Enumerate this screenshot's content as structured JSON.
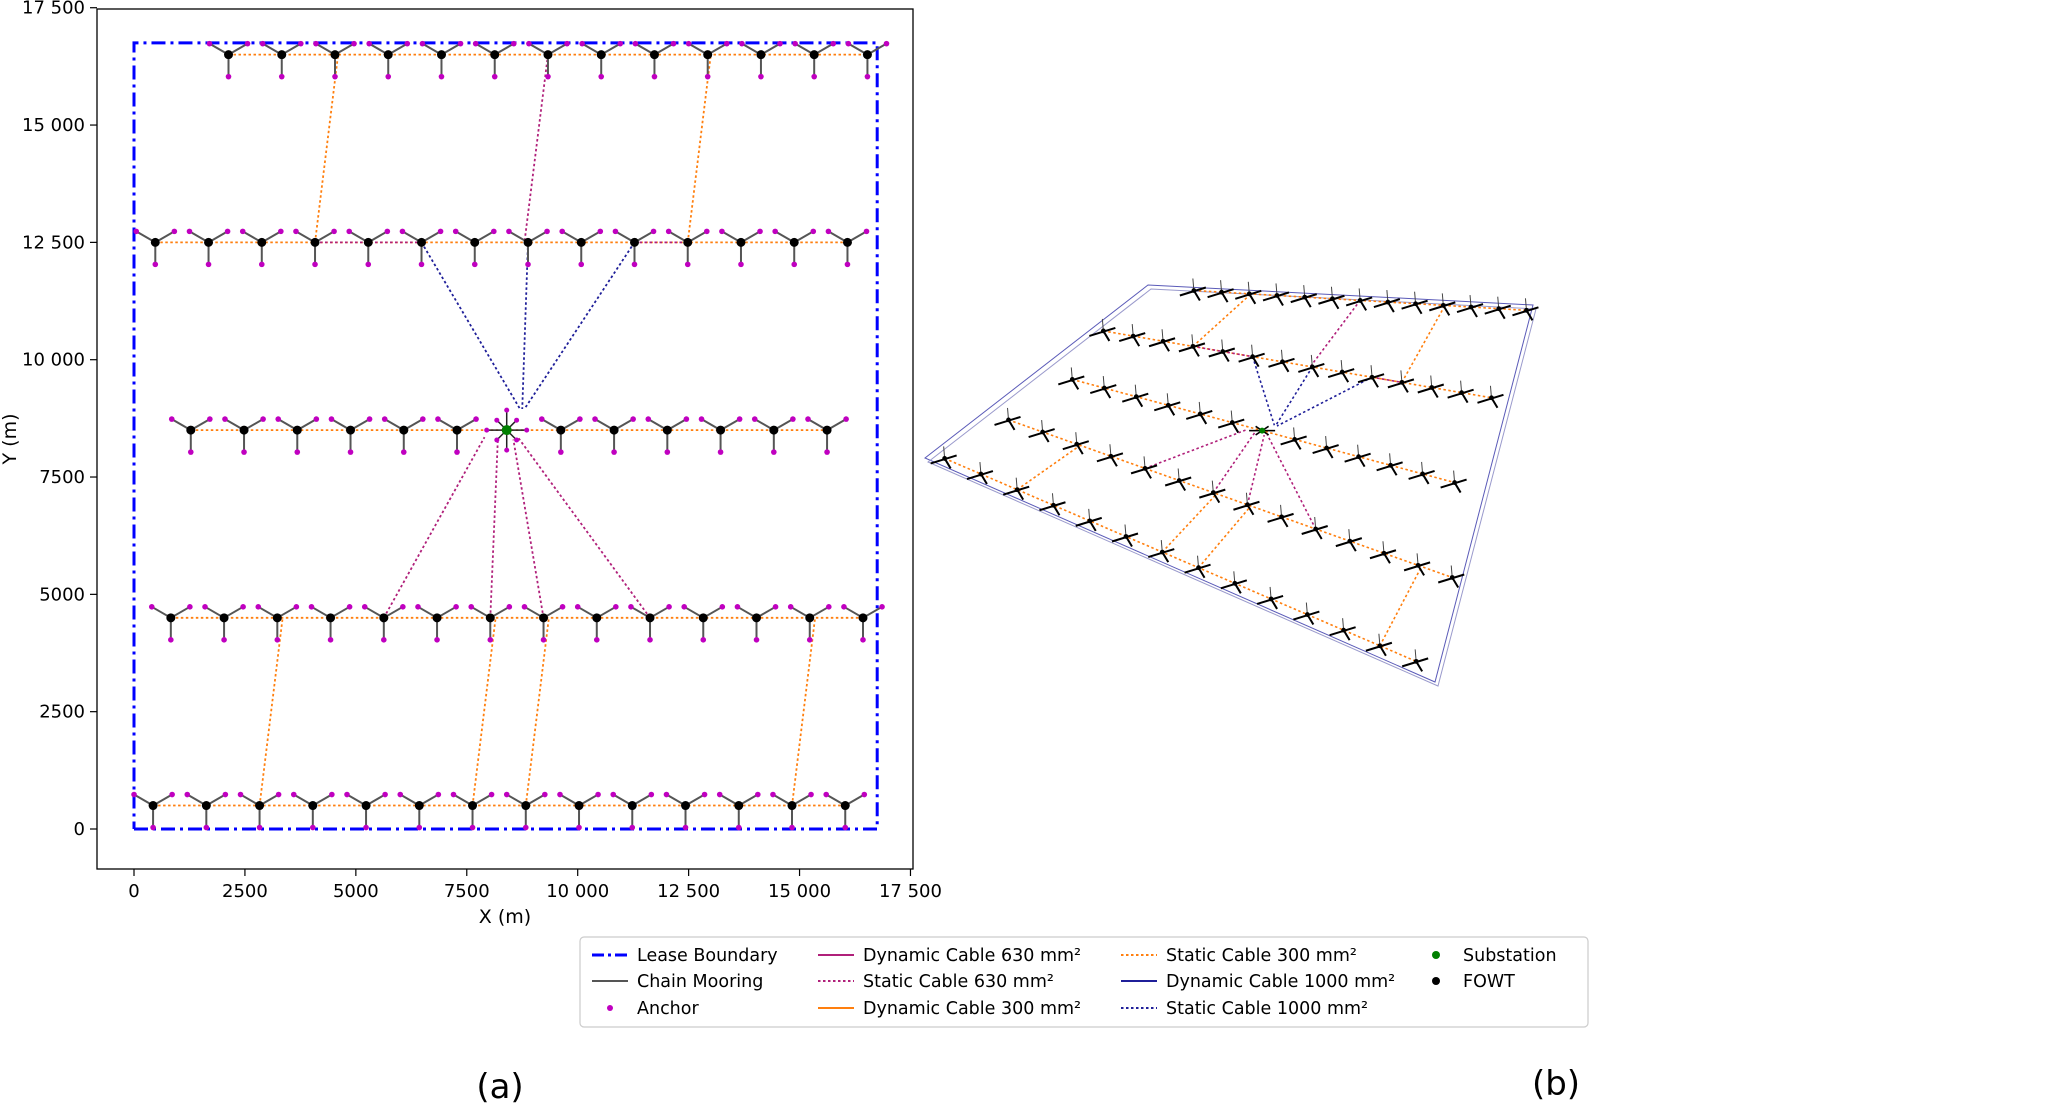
{
  "chart_data": [
    {
      "panel": "(a)",
      "type": "scatter",
      "xlabel": "X (m)",
      "ylabel": "Y (m)",
      "xlim": [
        -800,
        17500
      ],
      "ylim": [
        -800,
        17500
      ],
      "x_ticks": [
        0,
        2500,
        5000,
        7500,
        10000,
        12500,
        15000,
        17500
      ],
      "y_ticks": [
        0,
        2500,
        5000,
        7500,
        10000,
        12500,
        15000,
        17500
      ],
      "x_tick_labels": [
        "0",
        "2500",
        "5000",
        "7500",
        "10 000",
        "12 500",
        "15 000",
        "17 500"
      ],
      "y_tick_labels": [
        "0",
        "2500",
        "5000",
        "7500",
        "10 000",
        "12 500",
        "15 000",
        "17 500"
      ],
      "lease_boundary": [
        [
          0,
          0
        ],
        [
          16750,
          0
        ],
        [
          16750,
          16750
        ],
        [
          0,
          16750
        ],
        [
          0,
          0
        ]
      ],
      "substation": [
        8400,
        8500
      ],
      "rows": [
        {
          "y": 500,
          "x": [
            430,
            1630,
            2830,
            4030,
            5230,
            6430,
            7630,
            8830,
            10030,
            11230,
            12430,
            13630,
            14830,
            16030
          ]
        },
        {
          "y": 4500,
          "x": [
            830,
            2030,
            3230,
            4430,
            5630,
            6830,
            8030,
            9230,
            10430,
            11630,
            12830,
            14030,
            15230,
            16430
          ]
        },
        {
          "y": 8500,
          "x": [
            1280,
            2480,
            3680,
            4880,
            6080,
            7280,
            9620,
            10820,
            12020,
            13220,
            14420,
            15620
          ]
        },
        {
          "y": 12500,
          "x": [
            480,
            1680,
            2880,
            4080,
            5280,
            6480,
            7680,
            8880,
            10080,
            11280,
            12480,
            13680,
            14880,
            16080
          ]
        },
        {
          "y": 16500,
          "x": [
            2130,
            3330,
            4530,
            5730,
            6930,
            8130,
            9330,
            10530,
            11730,
            12930,
            14130,
            15330,
            16530
          ]
        }
      ],
      "static_cable_300_connectors": [
        [
          [
            2830,
            500
          ],
          [
            3350,
            4500
          ]
        ],
        [
          [
            7630,
            500
          ],
          [
            8150,
            4500
          ]
        ],
        [
          [
            8830,
            500
          ],
          [
            9350,
            4500
          ]
        ],
        [
          [
            14830,
            500
          ],
          [
            15350,
            4500
          ]
        ],
        [
          [
            4080,
            12500
          ],
          [
            4600,
            16500
          ]
        ],
        [
          [
            12480,
            12500
          ],
          [
            13000,
            16500
          ]
        ]
      ],
      "static_cable_630_paths": [
        [
          [
            5630,
            4500
          ],
          [
            7900,
            8350
          ]
        ],
        [
          [
            8030,
            4500
          ],
          [
            8200,
            8300
          ]
        ],
        [
          [
            9230,
            4500
          ],
          [
            8550,
            8300
          ]
        ],
        [
          [
            11630,
            4500
          ],
          [
            8650,
            8350
          ]
        ],
        [
          [
            4080,
            12500
          ],
          [
            6480,
            12500
          ]
        ],
        [
          [
            11280,
            12500
          ],
          [
            12480,
            12500
          ]
        ],
        [
          [
            9330,
            16500
          ],
          [
            8800,
            12500
          ]
        ]
      ],
      "static_cable_1000_paths": [
        [
          [
            6480,
            12500
          ],
          [
            8700,
            8950
          ]
        ],
        [
          [
            8880,
            12500
          ],
          [
            8750,
            8950
          ]
        ],
        [
          [
            11280,
            12500
          ],
          [
            8800,
            8950
          ]
        ]
      ]
    },
    {
      "panel": "(b)",
      "type": "scatter",
      "view": "3D perspective of the same layout"
    }
  ],
  "legend": {
    "columns": [
      [
        {
          "label": "Lease Boundary",
          "key": "lease",
          "color": "#0000ff"
        },
        {
          "label": "Chain Mooring",
          "key": "mooring",
          "color": "#555555"
        },
        {
          "label": "Anchor",
          "key": "anchor",
          "color": "#c000c0"
        }
      ],
      [
        {
          "label": "Dynamic Cable 630 mm²",
          "key": "dyn630",
          "color": "#b0207a"
        },
        {
          "label": "Static Cable 630 mm²",
          "key": "st630",
          "color": "#b0207a"
        },
        {
          "label": "Dynamic Cable 300 mm²",
          "key": "dyn300",
          "color": "#ff7f0e"
        }
      ],
      [
        {
          "label": "Static Cable 300 mm²",
          "key": "st300",
          "color": "#ff7f0e"
        },
        {
          "label": "Dynamic Cable 1000 mm²",
          "key": "dyn1000",
          "color": "#1f1f99"
        },
        {
          "label": "Static Cable 1000 mm²",
          "key": "st1000",
          "color": "#1f1f99"
        }
      ],
      [
        {
          "label": "Substation",
          "key": "substation",
          "color": "#008000"
        },
        {
          "label": "FOWT",
          "key": "fowt",
          "color": "#000000"
        }
      ]
    ]
  },
  "panel_labels": [
    "(a)",
    "(b)"
  ]
}
